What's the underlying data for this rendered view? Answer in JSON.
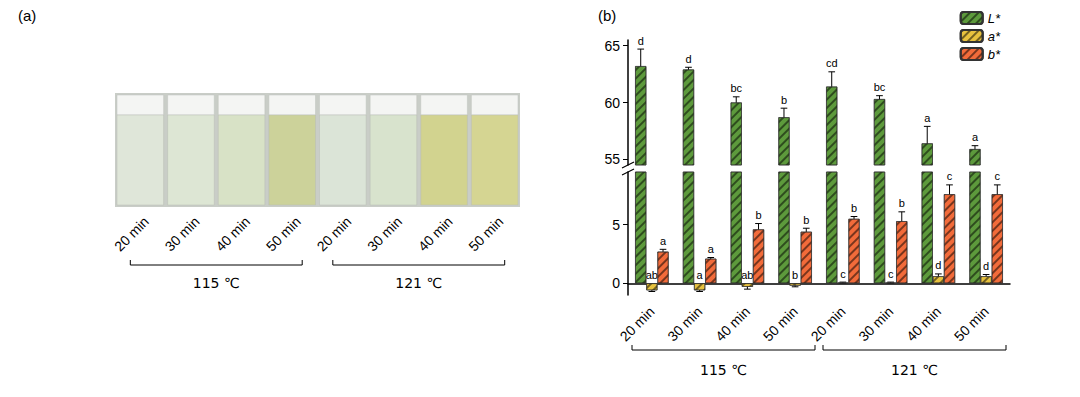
{
  "panel_a": {
    "label": "(a)",
    "samples": [
      "20 min",
      "30 min",
      "40 min",
      "50 min",
      "20 min",
      "30 min",
      "40 min",
      "50 min"
    ],
    "colors": [
      "#dfe6d9",
      "#dde6d4",
      "#d8e2c6",
      "#ccd29a",
      "#dbe4d7",
      "#d8e3cd",
      "#d2d38f",
      "#d5d592"
    ],
    "groups": [
      "115 ℃",
      "121 ℃"
    ]
  },
  "chart_data": {
    "type": "bar",
    "title": "(b)",
    "categories": [
      "20 min",
      "30 min",
      "40 min",
      "50 min",
      "20 min",
      "30 min",
      "40 min",
      "50 min"
    ],
    "groups": [
      "115 ℃",
      "121 ℃"
    ],
    "ylim": [
      [
        -1,
        9.5
      ],
      [
        54.5,
        65.5
      ]
    ],
    "yticks": [
      [
        0,
        5
      ],
      [
        55,
        60,
        65
      ]
    ],
    "grid": false,
    "legend": "upper right",
    "series": [
      {
        "name": "L*",
        "color": "#5d9a3c",
        "values": [
          63.2,
          62.9,
          60.0,
          58.7,
          61.4,
          60.3,
          56.4,
          55.9
        ],
        "errors": [
          1.5,
          0.2,
          0.5,
          0.8,
          1.3,
          0.3,
          1.5,
          0.3
        ],
        "letters": [
          "d",
          "d",
          "bc",
          "b",
          "cd",
          "bc",
          "a",
          "a"
        ]
      },
      {
        "name": "a*",
        "color": "#e8c23e",
        "values": [
          -0.6,
          -0.6,
          -0.3,
          -0.2,
          0.05,
          0.05,
          0.6,
          0.6
        ],
        "errors": [
          0.1,
          0.1,
          0.2,
          0.1,
          0.05,
          0.05,
          0.2,
          0.15
        ],
        "letters": [
          "ab",
          "a",
          "ab",
          "b",
          "c",
          "c",
          "d",
          "d"
        ]
      },
      {
        "name": "b*",
        "color": "#f26b3a",
        "values": [
          2.7,
          2.1,
          4.6,
          4.4,
          5.5,
          5.3,
          7.6,
          7.6
        ],
        "errors": [
          0.2,
          0.1,
          0.5,
          0.3,
          0.2,
          0.8,
          0.8,
          0.8
        ],
        "letters": [
          "a",
          "a",
          "b",
          "b",
          "b",
          "b",
          "c",
          "c"
        ]
      }
    ]
  }
}
